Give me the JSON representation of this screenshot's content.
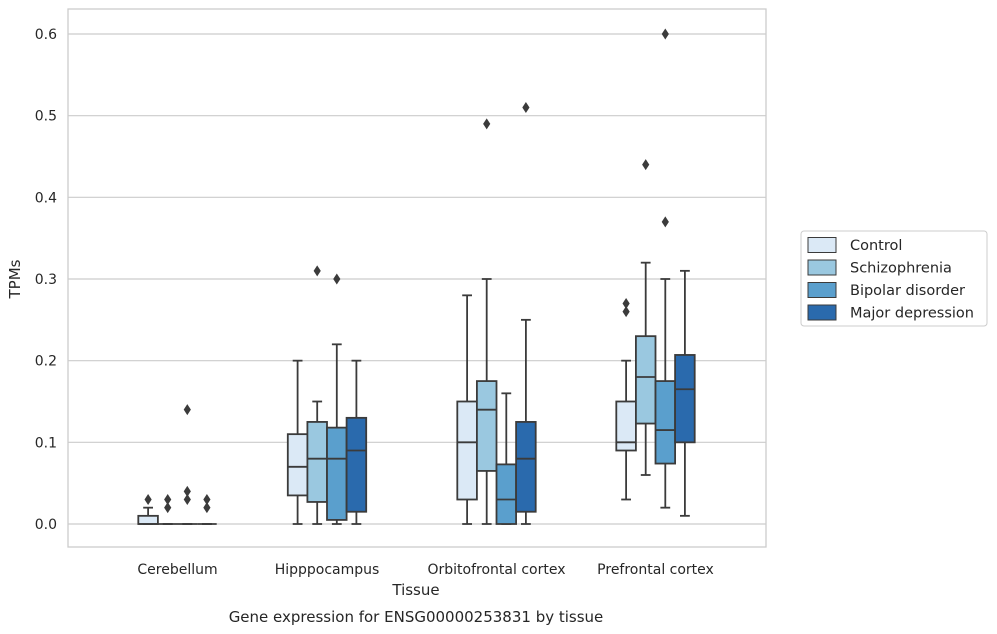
{
  "caption": "Gene expression for ENSG00000253831 by tissue",
  "chart_data": {
    "type": "box",
    "xlabel": "Tissue",
    "ylabel": "TPMs",
    "ylim": [
      -0.03,
      0.63
    ],
    "yticks": [
      0.0,
      0.1,
      0.2,
      0.3,
      0.4,
      0.5,
      0.6
    ],
    "ytick_labels": [
      "0.0",
      "0.1",
      "0.2",
      "0.3",
      "0.4",
      "0.5",
      "0.6"
    ],
    "grid": true,
    "legend_position": "right",
    "categories": [
      "Cerebellum",
      "Hipppocampus",
      "Orbitofrontal cortex",
      "Prefrontal cortex"
    ],
    "series": [
      {
        "name": "Control",
        "color": "#dbe9f6",
        "boxes": [
          {
            "q1": 0.0,
            "median": 0.0,
            "q3": 0.01,
            "whisker_low": 0.0,
            "whisker_high": 0.02,
            "outliers": [
              0.03
            ]
          },
          {
            "q1": 0.035,
            "median": 0.07,
            "q3": 0.11,
            "whisker_low": 0.0,
            "whisker_high": 0.2,
            "outliers": []
          },
          {
            "q1": 0.03,
            "median": 0.1,
            "q3": 0.15,
            "whisker_low": 0.0,
            "whisker_high": 0.28,
            "outliers": []
          },
          {
            "q1": 0.09,
            "median": 0.1,
            "q3": 0.15,
            "whisker_low": 0.03,
            "whisker_high": 0.2,
            "outliers": [
              0.26,
              0.27
            ]
          }
        ]
      },
      {
        "name": "Schizophrenia",
        "color": "#9ac8e0",
        "boxes": [
          {
            "q1": 0.0,
            "median": 0.0,
            "q3": 0.0,
            "whisker_low": 0.0,
            "whisker_high": 0.0,
            "outliers": [
              0.02,
              0.03
            ]
          },
          {
            "q1": 0.027,
            "median": 0.08,
            "q3": 0.125,
            "whisker_low": 0.0,
            "whisker_high": 0.15,
            "outliers": [
              0.31
            ]
          },
          {
            "q1": 0.065,
            "median": 0.14,
            "q3": 0.175,
            "whisker_low": 0.0,
            "whisker_high": 0.3,
            "outliers": [
              0.49
            ]
          },
          {
            "q1": 0.123,
            "median": 0.18,
            "q3": 0.23,
            "whisker_low": 0.06,
            "whisker_high": 0.32,
            "outliers": [
              0.44
            ]
          }
        ]
      },
      {
        "name": "Bipolar disorder",
        "color": "#5a9fcd",
        "boxes": [
          {
            "q1": 0.0,
            "median": 0.0,
            "q3": 0.0,
            "whisker_low": 0.0,
            "whisker_high": 0.0,
            "outliers": [
              0.03,
              0.04,
              0.14
            ]
          },
          {
            "q1": 0.005,
            "median": 0.08,
            "q3": 0.118,
            "whisker_low": 0.0,
            "whisker_high": 0.22,
            "outliers": [
              0.3
            ]
          },
          {
            "q1": 0.0,
            "median": 0.03,
            "q3": 0.073,
            "whisker_low": 0.0,
            "whisker_high": 0.16,
            "outliers": []
          },
          {
            "q1": 0.074,
            "median": 0.115,
            "q3": 0.175,
            "whisker_low": 0.02,
            "whisker_high": 0.3,
            "outliers": [
              0.37,
              0.6
            ]
          }
        ]
      },
      {
        "name": "Major depression",
        "color": "#2a6aad",
        "boxes": [
          {
            "q1": 0.0,
            "median": 0.0,
            "q3": 0.0,
            "whisker_low": 0.0,
            "whisker_high": 0.0,
            "outliers": [
              0.02,
              0.03
            ]
          },
          {
            "q1": 0.015,
            "median": 0.09,
            "q3": 0.13,
            "whisker_low": 0.0,
            "whisker_high": 0.2,
            "outliers": []
          },
          {
            "q1": 0.015,
            "median": 0.08,
            "q3": 0.125,
            "whisker_low": 0.0,
            "whisker_high": 0.25,
            "outliers": [
              0.51
            ]
          },
          {
            "q1": 0.1,
            "median": 0.165,
            "q3": 0.207,
            "whisker_low": 0.01,
            "whisker_high": 0.31,
            "outliers": []
          }
        ]
      }
    ]
  }
}
